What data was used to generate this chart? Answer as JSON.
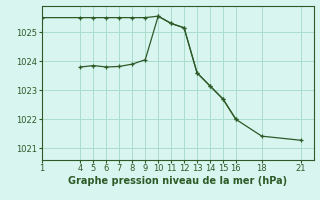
{
  "series1_x": [
    1,
    4,
    5,
    6,
    7,
    8,
    9,
    10,
    11,
    12,
    13,
    14,
    15,
    16
  ],
  "series1_y": [
    1025.5,
    1025.5,
    1025.5,
    1025.5,
    1025.5,
    1025.5,
    1025.5,
    1025.55,
    1025.3,
    1025.15,
    1023.6,
    1023.15,
    1022.7,
    1022.0
  ],
  "series2_x": [
    4,
    5,
    6,
    7,
    8,
    9,
    10,
    11,
    12,
    13,
    14,
    15,
    16,
    18,
    21
  ],
  "series2_y": [
    1023.8,
    1023.85,
    1023.8,
    1023.82,
    1023.9,
    1024.05,
    1025.55,
    1025.3,
    1025.15,
    1023.6,
    1023.15,
    1022.7,
    1022.0,
    1021.42,
    1021.28
  ],
  "line_color": "#2d5a27",
  "bg_color": "#d8f5f0",
  "grid_color": "#aaddcc",
  "xlabel": "Graphe pression niveau de la mer (hPa)",
  "xlim": [
    1,
    22
  ],
  "ylim": [
    1020.6,
    1025.9
  ],
  "yticks": [
    1021,
    1022,
    1023,
    1024,
    1025
  ],
  "xticks": [
    1,
    4,
    5,
    6,
    7,
    8,
    9,
    10,
    11,
    12,
    13,
    14,
    15,
    16,
    18,
    21
  ],
  "label_fontsize": 7,
  "tick_fontsize": 6
}
